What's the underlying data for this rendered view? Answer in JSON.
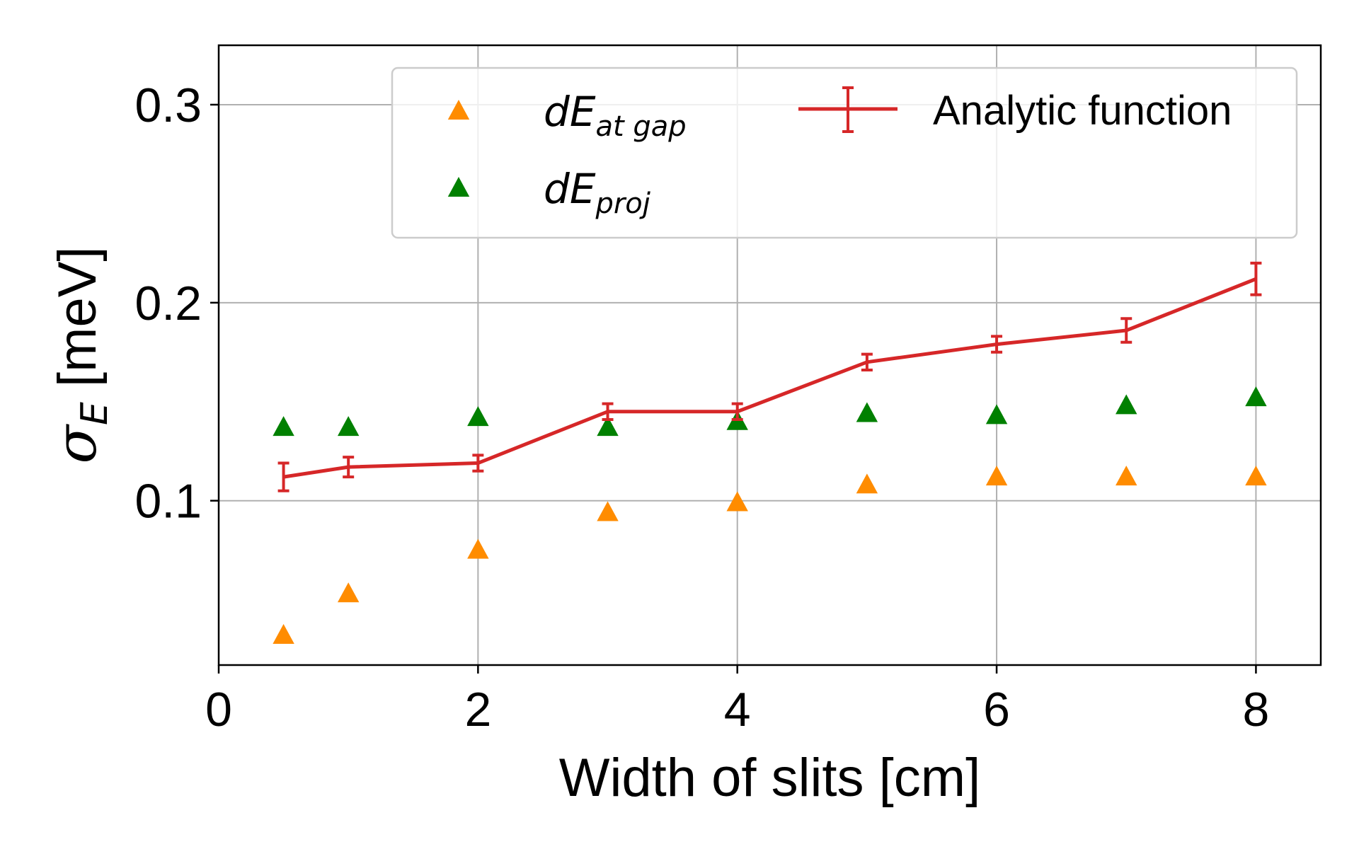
{
  "chart_data": {
    "type": "scatter",
    "xlabel": "Width of slits [cm]",
    "ylabel": {
      "symbol": "σ",
      "subscript": "E",
      "unit": " [meV]"
    },
    "xlim": [
      0,
      8.5
    ],
    "ylim": [
      0.017,
      0.33
    ],
    "xticks": [
      0,
      2,
      4,
      6,
      8
    ],
    "xtick_labels": [
      "0",
      "2",
      "4",
      "6",
      "8"
    ],
    "yticks": [
      0.1,
      0.2,
      0.3
    ],
    "ytick_labels": [
      "0.1",
      "0.2",
      "0.3"
    ],
    "grid": true,
    "legend_position": "top-right",
    "series": [
      {
        "name": "dE_at gap",
        "legend_main": "dE",
        "legend_sub": "at gap",
        "type": "scatter",
        "marker": "triangle",
        "color": "#ff8c00",
        "x": [
          0.5,
          1,
          2,
          3,
          4,
          5,
          6,
          7,
          8
        ],
        "y": [
          0.032,
          0.053,
          0.075,
          0.094,
          0.099,
          0.108,
          0.112,
          0.112,
          0.112
        ]
      },
      {
        "name": "dE_proj",
        "legend_main": "dE",
        "legend_sub": "proj",
        "type": "scatter",
        "marker": "triangle",
        "color": "#008000",
        "x": [
          0.5,
          1,
          2,
          3,
          4,
          5,
          6,
          7,
          8
        ],
        "y": [
          0.137,
          0.137,
          0.142,
          0.137,
          0.14,
          0.144,
          0.143,
          0.148,
          0.152
        ]
      },
      {
        "name": "Analytic function",
        "legend_main": "Analytic function",
        "type": "line-errorbar",
        "color": "#d62728",
        "x": [
          0.5,
          1,
          2,
          3,
          4,
          5,
          6,
          7,
          8
        ],
        "y": [
          0.112,
          0.117,
          0.119,
          0.145,
          0.145,
          0.17,
          0.179,
          0.186,
          0.212
        ],
        "yerr": [
          0.007,
          0.005,
          0.004,
          0.004,
          0.004,
          0.004,
          0.004,
          0.006,
          0.008
        ]
      }
    ]
  }
}
